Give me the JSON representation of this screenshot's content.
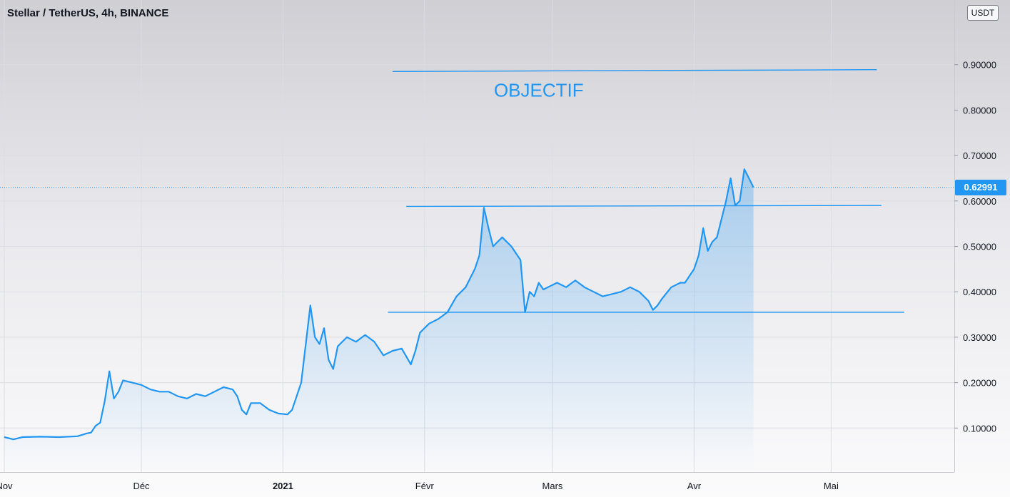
{
  "header": {
    "symbol_title": "Stellar / TetherUS, 4h, BINANCE",
    "currency": "USDT"
  },
  "last_price": "0.62991",
  "colors": {
    "line": "#2196f3",
    "annotation": "#2196f3",
    "grid": "#dcdde2",
    "text": "#131722"
  },
  "chart_data": {
    "type": "area",
    "title": "Stellar / TetherUS, 4h, BINANCE",
    "y_axis": {
      "ticks": [
        0.1,
        0.2,
        0.3,
        0.4,
        0.5,
        0.6,
        0.7,
        0.8,
        0.9
      ],
      "tick_labels": [
        "0.10000",
        "0.20000",
        "0.30000",
        "0.40000",
        "0.50000",
        "0.60000",
        "0.70000",
        "0.80000",
        "0.90000"
      ],
      "range": [
        0.0,
        1.0
      ],
      "position": "right"
    },
    "x_axis": {
      "range": [
        "2020-11-01",
        "2021-05-20"
      ],
      "ticks": [
        {
          "date": "2020-11-01",
          "label": "Nov",
          "bold": false
        },
        {
          "date": "2020-12-01",
          "label": "Déc",
          "bold": false
        },
        {
          "date": "2021-01-01",
          "label": "2021",
          "bold": true
        },
        {
          "date": "2021-02-01",
          "label": "Févr",
          "bold": false
        },
        {
          "date": "2021-03-01",
          "label": "Mars",
          "bold": false
        },
        {
          "date": "2021-04-01",
          "label": "Avr",
          "bold": false
        },
        {
          "date": "2021-05-01",
          "label": "Mai",
          "bold": false
        }
      ]
    },
    "grid": true,
    "series": [
      {
        "points": [
          [
            "2020-11-01",
            0.08
          ],
          [
            "2020-11-03",
            0.075
          ],
          [
            "2020-11-05",
            0.08
          ],
          [
            "2020-11-09",
            0.081
          ],
          [
            "2020-11-13",
            0.08
          ],
          [
            "2020-11-17",
            0.082
          ],
          [
            "2020-11-19",
            0.088
          ],
          [
            "2020-11-20",
            0.09
          ],
          [
            "2020-11-21",
            0.105
          ],
          [
            "2020-11-22",
            0.112
          ],
          [
            "2020-11-23",
            0.16
          ],
          [
            "2020-11-24",
            0.225
          ],
          [
            "2020-11-25",
            0.165
          ],
          [
            "2020-11-26",
            0.18
          ],
          [
            "2020-11-27",
            0.205
          ],
          [
            "2020-11-29",
            0.2
          ],
          [
            "2020-12-01",
            0.195
          ],
          [
            "2020-12-03",
            0.185
          ],
          [
            "2020-12-05",
            0.18
          ],
          [
            "2020-12-07",
            0.18
          ],
          [
            "2020-12-09",
            0.17
          ],
          [
            "2020-12-11",
            0.165
          ],
          [
            "2020-12-13",
            0.175
          ],
          [
            "2020-12-15",
            0.17
          ],
          [
            "2020-12-17",
            0.18
          ],
          [
            "2020-12-19",
            0.19
          ],
          [
            "2020-12-21",
            0.185
          ],
          [
            "2020-12-22",
            0.17
          ],
          [
            "2020-12-23",
            0.14
          ],
          [
            "2020-12-24",
            0.13
          ],
          [
            "2020-12-25",
            0.155
          ],
          [
            "2020-12-27",
            0.155
          ],
          [
            "2020-12-29",
            0.14
          ],
          [
            "2020-12-31",
            0.132
          ],
          [
            "2021-01-02",
            0.13
          ],
          [
            "2021-01-03",
            0.14
          ],
          [
            "2021-01-04",
            0.17
          ],
          [
            "2021-01-05",
            0.2
          ],
          [
            "2021-01-06",
            0.285
          ],
          [
            "2021-01-07",
            0.37
          ],
          [
            "2021-01-08",
            0.3
          ],
          [
            "2021-01-09",
            0.285
          ],
          [
            "2021-01-10",
            0.32
          ],
          [
            "2021-01-11",
            0.25
          ],
          [
            "2021-01-12",
            0.23
          ],
          [
            "2021-01-13",
            0.28
          ],
          [
            "2021-01-15",
            0.3
          ],
          [
            "2021-01-17",
            0.29
          ],
          [
            "2021-01-19",
            0.305
          ],
          [
            "2021-01-21",
            0.29
          ],
          [
            "2021-01-23",
            0.26
          ],
          [
            "2021-01-25",
            0.27
          ],
          [
            "2021-01-27",
            0.275
          ],
          [
            "2021-01-29",
            0.24
          ],
          [
            "2021-01-30",
            0.27
          ],
          [
            "2021-01-31",
            0.31
          ],
          [
            "2021-02-02",
            0.33
          ],
          [
            "2021-02-04",
            0.34
          ],
          [
            "2021-02-06",
            0.355
          ],
          [
            "2021-02-08",
            0.39
          ],
          [
            "2021-02-10",
            0.41
          ],
          [
            "2021-02-12",
            0.45
          ],
          [
            "2021-02-13",
            0.48
          ],
          [
            "2021-02-14",
            0.585
          ],
          [
            "2021-02-15",
            0.54
          ],
          [
            "2021-02-16",
            0.5
          ],
          [
            "2021-02-18",
            0.52
          ],
          [
            "2021-02-20",
            0.5
          ],
          [
            "2021-02-22",
            0.47
          ],
          [
            "2021-02-23",
            0.355
          ],
          [
            "2021-02-24",
            0.4
          ],
          [
            "2021-02-25",
            0.39
          ],
          [
            "2021-02-26",
            0.42
          ],
          [
            "2021-02-27",
            0.405
          ],
          [
            "2021-02-28",
            0.41
          ],
          [
            "2021-03-02",
            0.42
          ],
          [
            "2021-03-04",
            0.41
          ],
          [
            "2021-03-06",
            0.425
          ],
          [
            "2021-03-08",
            0.41
          ],
          [
            "2021-03-10",
            0.4
          ],
          [
            "2021-03-12",
            0.39
          ],
          [
            "2021-03-14",
            0.395
          ],
          [
            "2021-03-16",
            0.4
          ],
          [
            "2021-03-18",
            0.41
          ],
          [
            "2021-03-20",
            0.4
          ],
          [
            "2021-03-22",
            0.38
          ],
          [
            "2021-03-23",
            0.36
          ],
          [
            "2021-03-24",
            0.37
          ],
          [
            "2021-03-25",
            0.385
          ],
          [
            "2021-03-27",
            0.41
          ],
          [
            "2021-03-29",
            0.42
          ],
          [
            "2021-03-30",
            0.42
          ],
          [
            "2021-03-31",
            0.435
          ],
          [
            "2021-04-01",
            0.45
          ],
          [
            "2021-04-02",
            0.48
          ],
          [
            "2021-04-03",
            0.54
          ],
          [
            "2021-04-04",
            0.49
          ],
          [
            "2021-04-05",
            0.51
          ],
          [
            "2021-04-06",
            0.52
          ],
          [
            "2021-04-07",
            0.56
          ],
          [
            "2021-04-08",
            0.6
          ],
          [
            "2021-04-09",
            0.65
          ],
          [
            "2021-04-10",
            0.59
          ],
          [
            "2021-04-11",
            0.6
          ],
          [
            "2021-04-12",
            0.67
          ],
          [
            "2021-04-13",
            0.65
          ],
          [
            "2021-04-14",
            0.63
          ]
        ]
      }
    ],
    "annotations": [
      {
        "type": "line",
        "y": [
          0.885,
          0.889
        ],
        "x": [
          "2021-01-25",
          "2021-05-11"
        ]
      },
      {
        "type": "line",
        "y": [
          0.588,
          0.59
        ],
        "x": [
          "2021-01-28",
          "2021-05-12"
        ]
      },
      {
        "type": "line",
        "y": [
          0.355,
          0.355
        ],
        "x": [
          "2021-01-24",
          "2021-05-17"
        ]
      },
      {
        "type": "text",
        "text": "OBJECTIF",
        "at": [
          "2021-02-26",
          0.83
        ]
      }
    ]
  }
}
